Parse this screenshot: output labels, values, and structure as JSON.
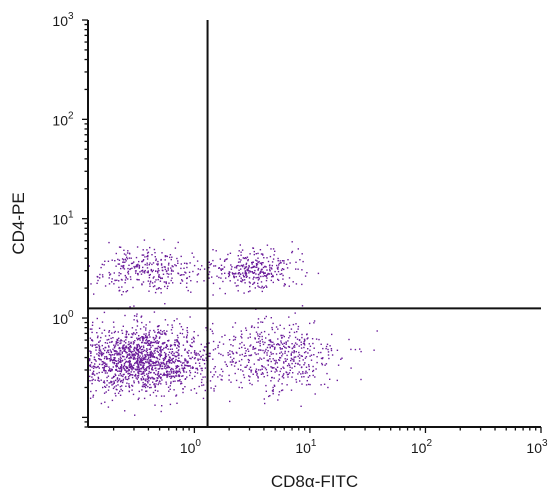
{
  "chart_data": {
    "type": "scatter",
    "title": "",
    "xlabel": "CD8α-FITC",
    "ylabel": "CD4-PE",
    "x_scale": "log",
    "y_scale": "log",
    "xlim": [
      0.12,
      1000
    ],
    "ylim": [
      0.08,
      1000
    ],
    "x_ticks": [
      {
        "base": "10",
        "exp": "0",
        "value": 1
      },
      {
        "base": "10",
        "exp": "1",
        "value": 10
      },
      {
        "base": "10",
        "exp": "2",
        "value": 100
      },
      {
        "base": "10",
        "exp": "3",
        "value": 1000
      }
    ],
    "y_ticks": [
      {
        "base": "10",
        "exp": "0",
        "value": 1
      },
      {
        "base": "10",
        "exp": "1",
        "value": 10
      },
      {
        "base": "10",
        "exp": "2",
        "value": 100
      },
      {
        "base": "10",
        "exp": "3",
        "value": 1000
      }
    ],
    "quadrant_gates": {
      "x": 1.3,
      "y": 1.25
    },
    "grid": false,
    "legend": "none",
    "point_color": "#6a1b9a",
    "populations": [
      {
        "label": "CD4-CD8- (lower-left)",
        "center_x": 0.35,
        "center_y": 0.38,
        "spread_log_x": 0.3,
        "spread_log_y": 0.17,
        "count": 1500
      },
      {
        "label": "CD4-CD8+ (lower-right)",
        "center_x": 5.0,
        "center_y": 0.4,
        "spread_log_x": 0.28,
        "spread_log_y": 0.19,
        "count": 520
      },
      {
        "label": "CD4+CD8- (upper-left)",
        "center_x": 0.4,
        "center_y": 3.0,
        "spread_log_x": 0.26,
        "spread_log_y": 0.11,
        "count": 330
      },
      {
        "label": "CD4+CD8+ (upper-right)",
        "center_x": 3.2,
        "center_y": 3.1,
        "spread_log_x": 0.18,
        "spread_log_y": 0.1,
        "count": 330
      }
    ]
  }
}
